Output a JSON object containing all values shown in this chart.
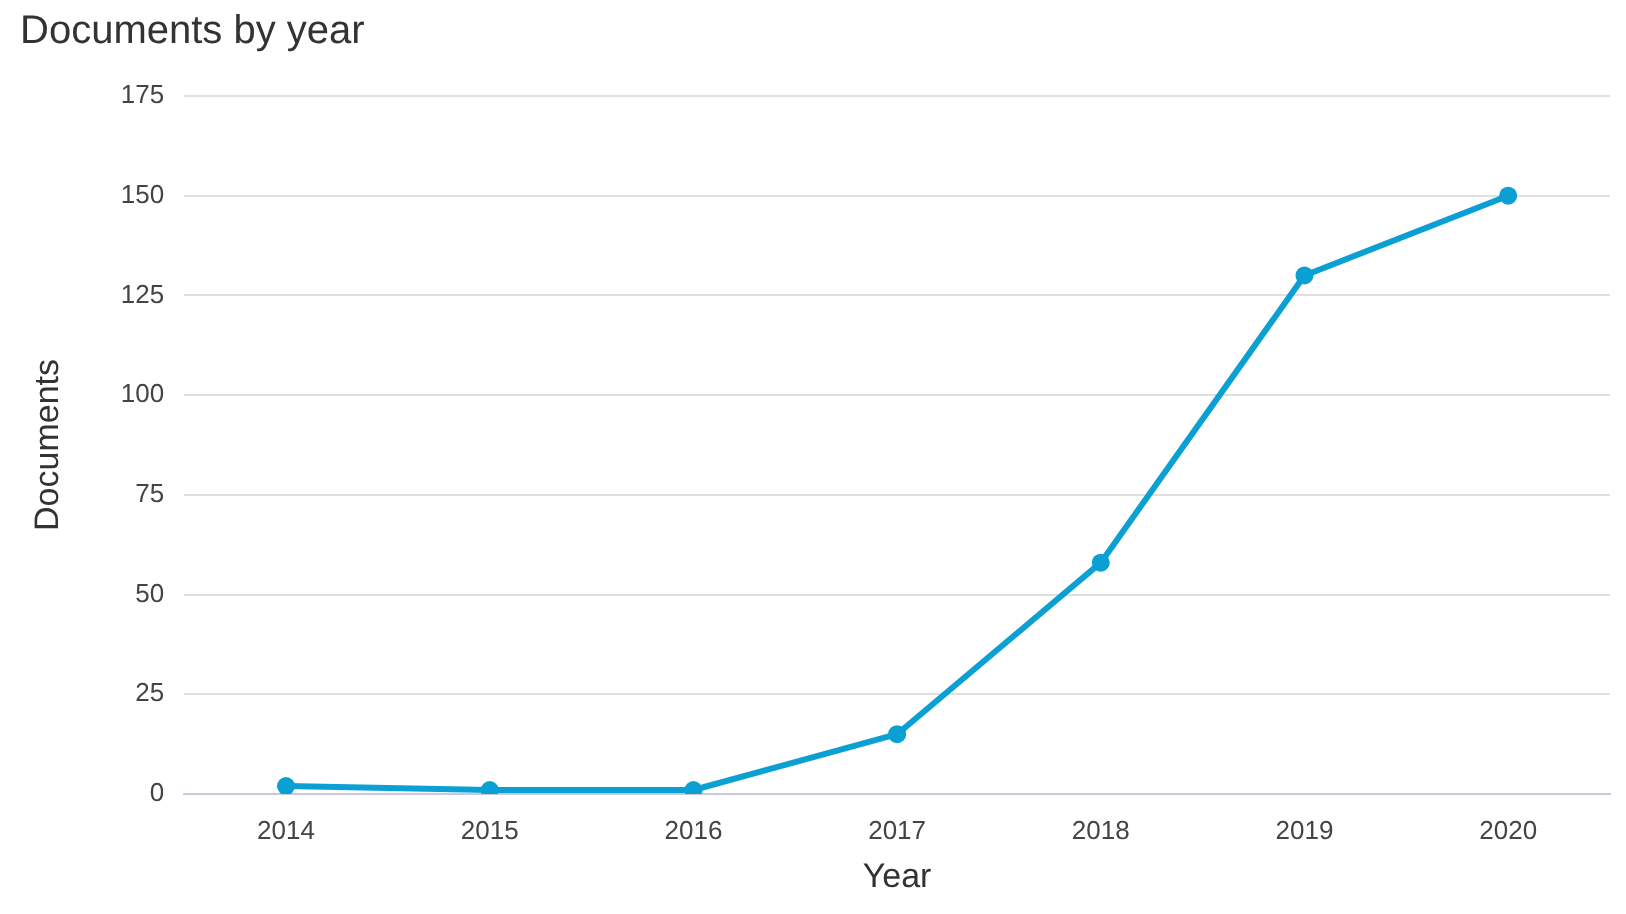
{
  "chart_data": {
    "type": "line",
    "title": "Documents by year",
    "xlabel": "Year",
    "ylabel": "Documents",
    "categories": [
      "2014",
      "2015",
      "2016",
      "2017",
      "2018",
      "2019",
      "2020"
    ],
    "series": [
      {
        "color": "#0ba0d3",
        "values": [
          2,
          1,
          1,
          15,
          58,
          130,
          150
        ]
      }
    ],
    "ylim": [
      0,
      175
    ],
    "yticks": [
      0,
      25,
      50,
      75,
      100,
      125,
      150,
      175
    ],
    "grid": "y",
    "legend": false,
    "marker": "circle",
    "line_style": "solid"
  }
}
